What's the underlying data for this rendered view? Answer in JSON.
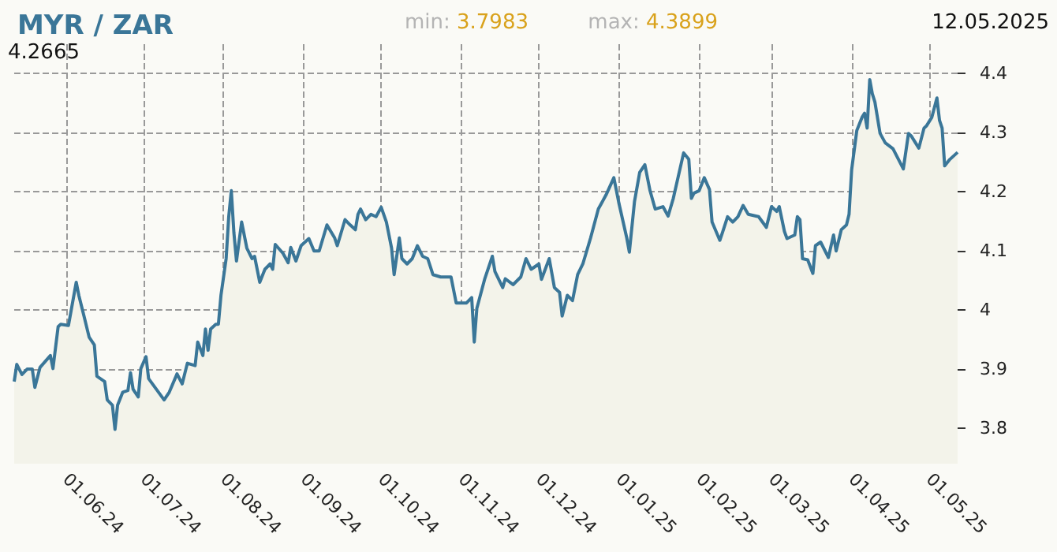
{
  "chart_data": {
    "type": "area",
    "title": "MYR / ZAR",
    "annotations": [
      "min: 3.7983",
      "max: 4.3899",
      "12.05.2025",
      "4.2665"
    ],
    "xlim": [
      "2024-05-12",
      "2025-05-12"
    ],
    "xticks": [
      {
        "value": "2024-06-01",
        "label": "01.06.24"
      },
      {
        "value": "2024-07-01",
        "label": "01.07.24"
      },
      {
        "value": "2024-08-01",
        "label": "01.08.24"
      },
      {
        "value": "2024-09-01",
        "label": "01.09.24"
      },
      {
        "value": "2024-10-01",
        "label": "01.10.24"
      },
      {
        "value": "2024-11-01",
        "label": "01.11.24"
      },
      {
        "value": "2024-12-01",
        "label": "01.12.24"
      },
      {
        "value": "2025-01-01",
        "label": "01.01.25"
      },
      {
        "value": "2025-02-01",
        "label": "01.02.25"
      },
      {
        "value": "2025-03-01",
        "label": "01.03.25"
      },
      {
        "value": "2025-04-01",
        "label": "01.04.25"
      },
      {
        "value": "2025-05-01",
        "label": "01.05.25"
      }
    ],
    "ylim": [
      3.74,
      4.45
    ],
    "yticks": [
      3.8,
      3.9,
      4,
      4.1,
      4.2,
      4.3,
      4.4
    ],
    "grid": true,
    "marker": "none",
    "x": [
      "2024-05-12",
      "2024-05-13",
      "2024-05-15",
      "2024-05-17",
      "2024-05-19",
      "2024-05-20",
      "2024-05-22",
      "2024-05-26",
      "2024-05-27",
      "2024-05-29",
      "2024-05-30",
      "2024-06-02",
      "2024-06-05",
      "2024-06-06",
      "2024-06-08",
      "2024-06-10",
      "2024-06-12",
      "2024-06-13",
      "2024-06-16",
      "2024-06-17",
      "2024-06-19",
      "2024-06-20",
      "2024-06-21",
      "2024-06-23",
      "2024-06-25",
      "2024-06-26",
      "2024-06-27",
      "2024-06-29",
      "2024-06-30",
      "2024-07-02",
      "2024-07-03",
      "2024-07-06",
      "2024-07-09",
      "2024-07-11",
      "2024-07-14",
      "2024-07-16",
      "2024-07-18",
      "2024-07-21",
      "2024-07-22",
      "2024-07-24",
      "2024-07-25",
      "2024-07-26",
      "2024-07-27",
      "2024-07-29",
      "2024-07-30",
      "2024-07-31",
      "2024-08-02",
      "2024-08-03",
      "2024-08-04",
      "2024-08-05",
      "2024-08-06",
      "2024-08-08",
      "2024-08-10",
      "2024-08-12",
      "2024-08-13",
      "2024-08-15",
      "2024-08-17",
      "2024-08-19",
      "2024-08-20",
      "2024-08-21",
      "2024-08-24",
      "2024-08-26",
      "2024-08-27",
      "2024-08-29",
      "2024-08-31",
      "2024-09-03",
      "2024-09-05",
      "2024-09-07",
      "2024-09-10",
      "2024-09-13",
      "2024-09-14",
      "2024-09-17",
      "2024-09-19",
      "2024-09-21",
      "2024-09-22",
      "2024-09-23",
      "2024-09-25",
      "2024-09-27",
      "2024-09-29",
      "2024-10-01",
      "2024-10-03",
      "2024-10-05",
      "2024-10-06",
      "2024-10-08",
      "2024-10-09",
      "2024-10-11",
      "2024-10-13",
      "2024-10-15",
      "2024-10-17",
      "2024-10-19",
      "2024-10-21",
      "2024-10-24",
      "2024-10-28",
      "2024-10-30",
      "2024-11-03",
      "2024-11-05",
      "2024-11-06",
      "2024-11-07",
      "2024-11-10",
      "2024-11-11",
      "2024-11-13",
      "2024-11-14",
      "2024-11-17",
      "2024-11-18",
      "2024-11-21",
      "2024-11-24",
      "2024-11-26",
      "2024-11-28",
      "2024-12-01",
      "2024-12-02",
      "2024-12-05",
      "2024-12-07",
      "2024-12-09",
      "2024-12-10",
      "2024-12-12",
      "2024-12-14",
      "2024-12-16",
      "2024-12-18",
      "2024-12-21",
      "2024-12-24",
      "2024-12-27",
      "2024-12-30",
      "2025-01-01",
      "2025-01-04",
      "2025-01-05",
      "2025-01-07",
      "2025-01-09",
      "2025-01-11",
      "2025-01-13",
      "2025-01-15",
      "2025-01-18",
      "2025-01-20",
      "2025-01-22",
      "2025-01-26",
      "2025-01-28",
      "2025-01-29",
      "2025-01-30",
      "2025-02-01",
      "2025-02-03",
      "2025-02-05",
      "2025-02-06",
      "2025-02-09",
      "2025-02-10",
      "2025-02-12",
      "2025-02-14",
      "2025-02-16",
      "2025-02-18",
      "2025-02-20",
      "2025-02-24",
      "2025-02-27",
      "2025-03-01",
      "2025-03-03",
      "2025-03-04",
      "2025-03-06",
      "2025-03-07",
      "2025-03-10",
      "2025-03-11",
      "2025-03-12",
      "2025-03-13",
      "2025-03-15",
      "2025-03-17",
      "2025-03-18",
      "2025-03-20",
      "2025-03-23",
      "2025-03-25",
      "2025-03-26",
      "2025-03-28",
      "2025-03-30",
      "2025-03-31",
      "2025-04-01",
      "2025-04-03",
      "2025-04-05",
      "2025-04-06",
      "2025-04-07",
      "2025-04-08",
      "2025-04-09",
      "2025-04-10",
      "2025-04-12",
      "2025-04-14",
      "2025-04-17",
      "2025-04-21",
      "2025-04-23",
      "2025-04-24",
      "2025-04-27",
      "2025-04-29",
      "2025-04-30",
      "2025-05-02",
      "2025-05-04",
      "2025-05-05",
      "2025-05-06",
      "2025-05-07",
      "2025-05-09",
      "2025-05-12"
    ],
    "series": [
      {
        "color": "#3a7698",
        "values": [
          3.879,
          3.908,
          3.891,
          3.9,
          3.9,
          3.869,
          3.903,
          3.923,
          3.901,
          3.972,
          3.976,
          3.974,
          4.047,
          4.025,
          3.99,
          3.954,
          3.941,
          3.888,
          3.879,
          3.848,
          3.839,
          3.798,
          3.839,
          3.861,
          3.864,
          3.894,
          3.866,
          3.853,
          3.901,
          3.921,
          3.884,
          3.866,
          3.848,
          3.861,
          3.892,
          3.875,
          3.91,
          3.906,
          3.946,
          3.923,
          3.968,
          3.932,
          3.968,
          3.976,
          3.976,
          4.025,
          4.087,
          4.158,
          4.202,
          4.131,
          4.083,
          4.149,
          4.105,
          4.087,
          4.091,
          4.047,
          4.069,
          4.078,
          4.069,
          4.111,
          4.096,
          4.08,
          4.106,
          4.083,
          4.109,
          4.121,
          4.1,
          4.1,
          4.144,
          4.122,
          4.109,
          4.153,
          4.144,
          4.136,
          4.162,
          4.171,
          4.153,
          4.162,
          4.158,
          4.174,
          4.149,
          4.105,
          4.06,
          4.122,
          4.087,
          4.078,
          4.087,
          4.109,
          4.091,
          4.087,
          4.06,
          4.056,
          4.056,
          4.012,
          4.012,
          4.021,
          3.946,
          4.003,
          4.052,
          4.065,
          4.091,
          4.065,
          4.038,
          4.053,
          4.043,
          4.056,
          4.087,
          4.069,
          4.078,
          4.052,
          4.087,
          4.038,
          4.03,
          3.99,
          4.025,
          4.016,
          4.06,
          4.078,
          4.122,
          4.171,
          4.195,
          4.224,
          4.18,
          4.122,
          4.098,
          4.184,
          4.233,
          4.246,
          4.202,
          4.171,
          4.175,
          4.159,
          4.189,
          4.266,
          4.255,
          4.189,
          4.198,
          4.202,
          4.224,
          4.204,
          4.149,
          4.118,
          4.131,
          4.158,
          4.149,
          4.158,
          4.177,
          4.162,
          4.158,
          4.14,
          4.175,
          4.167,
          4.175,
          4.133,
          4.121,
          4.127,
          4.158,
          4.153,
          4.087,
          4.085,
          4.062,
          4.109,
          4.115,
          4.089,
          4.127,
          4.1,
          4.136,
          4.144,
          4.162,
          4.237,
          4.304,
          4.326,
          4.333,
          4.308,
          4.39,
          4.366,
          4.352,
          4.299,
          4.283,
          4.273,
          4.239,
          4.299,
          4.295,
          4.274,
          4.308,
          4.312,
          4.326,
          4.359,
          4.321,
          4.308,
          4.244,
          4.255,
          4.267
        ]
      }
    ]
  }
}
